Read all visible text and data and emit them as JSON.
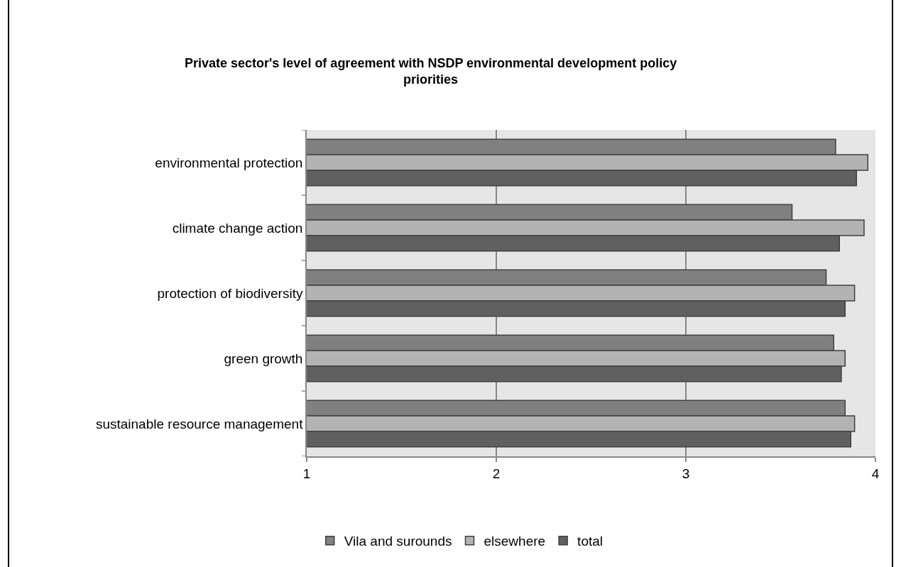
{
  "chart_data": {
    "type": "bar",
    "orientation": "horizontal",
    "title": "Private sector's level of agreement with NSDP environmental development policy priorities",
    "categories": [
      "environmental protection",
      "climate change action",
      "protection of biodiversity",
      "green growth",
      "sustainable resource management"
    ],
    "series": [
      {
        "name": "Vila and surounds",
        "color": "#808080",
        "values": [
          3.79,
          3.56,
          3.74,
          3.78,
          3.84
        ]
      },
      {
        "name": "elsewhere",
        "color": "#b3b3b3",
        "values": [
          3.96,
          3.94,
          3.89,
          3.84,
          3.89
        ]
      },
      {
        "name": "total",
        "color": "#606060",
        "values": [
          3.9,
          3.81,
          3.84,
          3.82,
          3.87
        ]
      }
    ],
    "xlim": [
      1,
      4
    ],
    "xticks": [
      1,
      2,
      3,
      4
    ],
    "grid": "x",
    "legend": "bottom"
  }
}
